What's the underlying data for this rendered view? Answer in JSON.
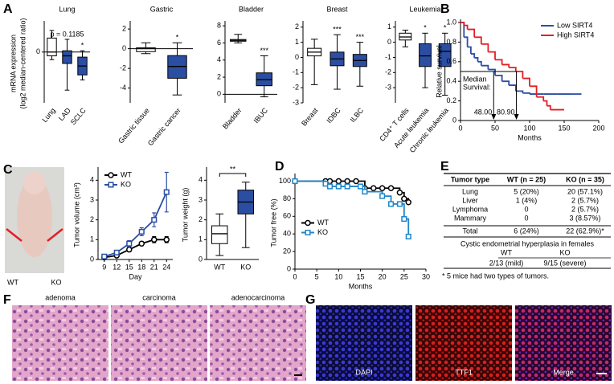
{
  "panel_labels": [
    "A",
    "B",
    "C",
    "D",
    "E",
    "F",
    "G"
  ],
  "chart_data": [
    {
      "type": "box",
      "title": "Lung",
      "ylabel": [
        "mRNA expression",
        "(log2 median-centered ratio)"
      ],
      "categories": [
        "Lung",
        "LAD",
        "SCLC"
      ],
      "box_colors": [
        "#ffffff",
        "#2b4ea2",
        "#2b4ea2"
      ],
      "boxes": [
        {
          "min": -0.3,
          "q1": -0.15,
          "median": 0,
          "q3": 0.55,
          "max": 0.85
        },
        {
          "min": -1.5,
          "q1": -0.45,
          "median": -0.15,
          "q3": 0.05,
          "max": 0.5
        },
        {
          "min": -1.1,
          "q1": -0.9,
          "median": -0.55,
          "q3": -0.2,
          "max": 0.05
        }
      ],
      "sig_labels": [
        null,
        "p = 0.1185",
        "*"
      ],
      "zero_line": true,
      "ylim": [
        -2,
        1.1
      ],
      "yticks": [
        0
      ]
    },
    {
      "type": "box",
      "title": "Gastric",
      "categories": [
        "Gastric tissue",
        "Gastric cancer"
      ],
      "box_colors": [
        "#ffffff",
        "#2b4ea2"
      ],
      "boxes": [
        {
          "min": -0.5,
          "q1": -0.3,
          "median": 0,
          "q3": 0.1,
          "max": 0.6
        },
        {
          "min": -4.7,
          "q1": -3,
          "median": -1.8,
          "q3": -0.7,
          "max": 0.6
        }
      ],
      "sig_labels": [
        null,
        "*"
      ],
      "zero_line": true,
      "ylim": [
        -5.5,
        2.5
      ],
      "yticks": [
        -4,
        -2,
        0,
        2
      ]
    },
    {
      "type": "box",
      "title": "Bladder",
      "categories": [
        "Bladder",
        "IBUC"
      ],
      "box_colors": [
        "#ffffff",
        "#2b4ea2"
      ],
      "boxes": [
        {
          "min": 6,
          "q1": 6.2,
          "median": 6.3,
          "q3": 6.4,
          "max": 7
        },
        {
          "min": -0.3,
          "q1": 1,
          "median": 1.7,
          "q3": 2.5,
          "max": 4.5
        }
      ],
      "sig_labels": [
        null,
        "***"
      ],
      "zero_line": true,
      "ylim": [
        -1,
        8.2
      ],
      "yticks": [
        0,
        2,
        4,
        6,
        8
      ]
    },
    {
      "type": "box",
      "title": "Breast",
      "categories": [
        "Breast",
        "IDBC",
        "ILBC"
      ],
      "box_colors": [
        "#ffffff",
        "#2b4ea2",
        "#2b4ea2"
      ],
      "boxes": [
        {
          "min": -1.8,
          "q1": 0.1,
          "median": 0.35,
          "q3": 0.6,
          "max": 1.2
        },
        {
          "min": -2.1,
          "q1": -0.55,
          "median": -0.1,
          "q3": 0.35,
          "max": 1.5
        },
        {
          "min": -1.9,
          "q1": -0.6,
          "median": -0.2,
          "q3": 0.2,
          "max": 1.0
        }
      ],
      "sig_labels": [
        null,
        "***",
        "***"
      ],
      "ylim": [
        -3,
        2.2
      ],
      "yticks": [
        -3,
        -2,
        -1,
        0,
        1,
        2
      ]
    },
    {
      "type": "box",
      "title": "Leukemia",
      "categories": [
        "CD4⁺ T cells",
        "Acute leukemia",
        "Chronic leukemia"
      ],
      "box_colors": [
        "#ffffff",
        "#2b4ea2",
        "#2b4ea2"
      ],
      "boxes": [
        {
          "min": -0.3,
          "q1": 0.15,
          "median": 0.35,
          "q3": 0.6,
          "max": 0.8
        },
        {
          "min": -3,
          "q1": -1.6,
          "median": -0.9,
          "q3": -0.1,
          "max": 0.6
        },
        {
          "min": -3.5,
          "q1": -1.6,
          "median": -0.6,
          "q3": -0.1,
          "max": 0.6
        }
      ],
      "sig_labels": [
        null,
        "*",
        "*"
      ],
      "ylim": [
        -4,
        1.2
      ],
      "yticks": [
        -3,
        -2,
        -1,
        0,
        1
      ]
    },
    {
      "type": "step",
      "ylabel": "Relative survival",
      "xlabel": "Months",
      "legend": "upper right",
      "series": [
        {
          "name": "Low SIRT4",
          "color": "#2b4ea2",
          "x": [
            0,
            5,
            10,
            15,
            20,
            25,
            30,
            40,
            50,
            60,
            70,
            80,
            90,
            100,
            120,
            140,
            160,
            175
          ],
          "values": [
            1,
            0.85,
            0.75,
            0.68,
            0.64,
            0.6,
            0.56,
            0.52,
            0.46,
            0.4,
            0.36,
            0.3,
            0.28,
            0.27,
            0.27,
            0.27,
            0.27,
            0.27
          ]
        },
        {
          "name": "High SIRT4",
          "color": "#e31e24",
          "x": [
            0,
            5,
            10,
            20,
            30,
            40,
            50,
            60,
            70,
            80,
            90,
            100,
            110,
            120,
            125,
            130,
            150
          ],
          "values": [
            1,
            0.97,
            0.93,
            0.85,
            0.78,
            0.7,
            0.62,
            0.57,
            0.54,
            0.5,
            0.43,
            0.35,
            0.24,
            0.2,
            0.15,
            0.11,
            0.11
          ]
        }
      ],
      "median_label": [
        "Median",
        "Survival:"
      ],
      "median_level": 0.5,
      "medians": [
        {
          "value": 48,
          "label": "48.00"
        },
        {
          "value": 80.9,
          "label": "80.90"
        }
      ],
      "xlim": [
        0,
        200
      ],
      "xticks": [
        0,
        50,
        100,
        150,
        200
      ],
      "ylim": [
        0,
        1
      ],
      "yticks": [
        0,
        0.2,
        0.4,
        0.6,
        0.8,
        {
          "value": 1,
          "label": "1.0"
        }
      ]
    },
    {
      "type": "line",
      "ylabel": "Tumor volume (cm³)",
      "xlabel": "Day",
      "legend": "upper left",
      "x": [
        9,
        12,
        15,
        18,
        21,
        24
      ],
      "series": [
        {
          "name": "WT",
          "color": "#000000",
          "marker": "circle",
          "values": [
            0.1,
            0.2,
            0.5,
            0.8,
            1.0,
            1.0
          ],
          "errors": [
            0.05,
            0.05,
            0.1,
            0.1,
            0.15,
            0.15
          ]
        },
        {
          "name": "KO",
          "color": "#2b4ea2",
          "marker": "square",
          "values": [
            0.15,
            0.35,
            0.8,
            1.4,
            2.0,
            3.4
          ],
          "errors": [
            0.05,
            0.1,
            0.15,
            0.2,
            0.35,
            1.0
          ]
        }
      ],
      "xlim": [
        7.5,
        25.5
      ],
      "xticks": [
        9,
        12,
        15,
        18,
        21,
        24
      ],
      "ylim": [
        0,
        4.5
      ],
      "yticks": [
        0,
        1,
        2,
        3,
        4
      ]
    },
    {
      "type": "box",
      "ylabel": "Tumor weight (g)",
      "categories": [
        "WT",
        "KO"
      ],
      "box_colors": [
        "#ffffff",
        "#2b4ea2"
      ],
      "boxes": [
        {
          "min": 0.2,
          "q1": 0.8,
          "median": 1.3,
          "q3": 1.7,
          "max": 2.3
        },
        {
          "min": 0.6,
          "q1": 2.3,
          "median": 2.9,
          "q3": 3.5,
          "max": 3.9
        }
      ],
      "bracket_label": "**",
      "ylim": [
        0,
        4.5
      ],
      "yticks": [
        0,
        1,
        2,
        3,
        4
      ]
    },
    {
      "type": "step",
      "ylabel": "Tumor free (%)",
      "xlabel": "Months",
      "legend": "center left",
      "series": [
        {
          "name": "WT",
          "color": "#000000",
          "marker": "circle",
          "x": [
            0,
            7,
            8,
            10,
            12,
            14,
            16,
            18,
            20,
            22,
            24,
            25,
            26
          ],
          "values": [
            100,
            100,
            100,
            100,
            100,
            100,
            92,
            92,
            92,
            92,
            87,
            80,
            76
          ]
        },
        {
          "name": "KO",
          "color": "#1f86c8",
          "marker": "square",
          "x": [
            0,
            7,
            8,
            10,
            12,
            15,
            16,
            20,
            22,
            24,
            25,
            26
          ],
          "values": [
            100,
            97,
            94,
            94,
            94,
            94,
            88,
            83,
            74,
            74,
            57,
            37
          ]
        }
      ],
      "xlim": [
        0,
        30
      ],
      "xticks": [
        0,
        5,
        10,
        15,
        20,
        25,
        30
      ],
      "ylim": [
        0,
        105
      ],
      "yticks": [
        0,
        20,
        40,
        60,
        80,
        100
      ]
    }
  ],
  "photo_labels": [
    "WT",
    "KO"
  ],
  "table": {
    "header": [
      "Tumor type",
      "WT (n = 25)",
      "KO (n = 35)"
    ],
    "rows": [
      [
        "Lung",
        "5 (20%)",
        "20 (57.1%)"
      ],
      [
        "Liver",
        "1 (4%)",
        "2 (5.7%)"
      ],
      [
        "Lymphoma",
        "0",
        "2 (5.7%)"
      ],
      [
        "Mammary",
        "0",
        "3 (8.57%)"
      ]
    ],
    "total": [
      "Total",
      "6 (24%)",
      "22 (62.9%)*"
    ],
    "subtitle": "Cystic endometrial hyperplasia in females",
    "sub_header": [
      "WT",
      "KO"
    ],
    "sub_row": [
      "2/13 (mild)",
      "9/15 (severe)"
    ],
    "footnote": "* 5 mice had two types of tumors."
  },
  "images": {
    "F": [
      "adenoma",
      "carcinoma",
      "adenocarcinoma"
    ],
    "G": [
      "DAPI",
      "TTF1",
      "Merge"
    ]
  }
}
